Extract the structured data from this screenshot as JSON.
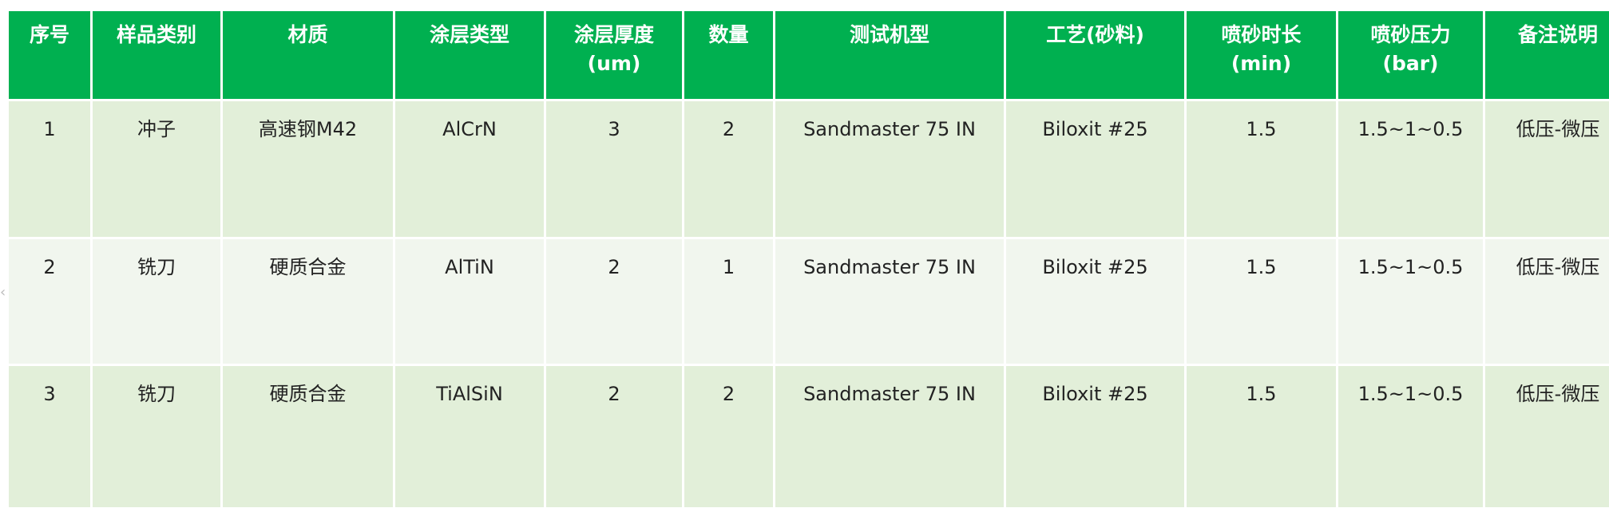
{
  "table": {
    "header_color": "#00b050",
    "row_colors": [
      "#e2efd9",
      "#f1f6ee"
    ],
    "headers": [
      {
        "line1": "序号",
        "line2": ""
      },
      {
        "line1": "样品类别",
        "line2": ""
      },
      {
        "line1": "材质",
        "line2": ""
      },
      {
        "line1": "涂层类型",
        "line2": ""
      },
      {
        "line1": "涂层厚度",
        "line2": "(um)"
      },
      {
        "line1": "数量",
        "line2": ""
      },
      {
        "line1": "测试机型",
        "line2": ""
      },
      {
        "line1": "工艺(砂料)",
        "line2": ""
      },
      {
        "line1": "喷砂时长",
        "line2": "(min)"
      },
      {
        "line1": "喷砂压力",
        "line2": "(bar)"
      },
      {
        "line1": "备注说明",
        "line2": ""
      }
    ],
    "rows": [
      [
        "1",
        "冲子",
        "高速钢M42",
        "AlCrN",
        "3",
        "2",
        "Sandmaster 75 IN",
        "Biloxit #25",
        "1.5",
        "1.5~1~0.5",
        "低压-微压"
      ],
      [
        "2",
        "铣刀",
        "硬质合金",
        "AlTiN",
        "2",
        "1",
        "Sandmaster 75 IN",
        "Biloxit #25",
        "1.5",
        "1.5~1~0.5",
        "低压-微压"
      ],
      [
        "3",
        "铣刀",
        "硬质合金",
        "TiAlSiN",
        "2",
        "2",
        "Sandmaster 75 IN",
        "Biloxit #25",
        "1.5",
        "1.5~1~0.5",
        "低压-微压"
      ]
    ]
  }
}
